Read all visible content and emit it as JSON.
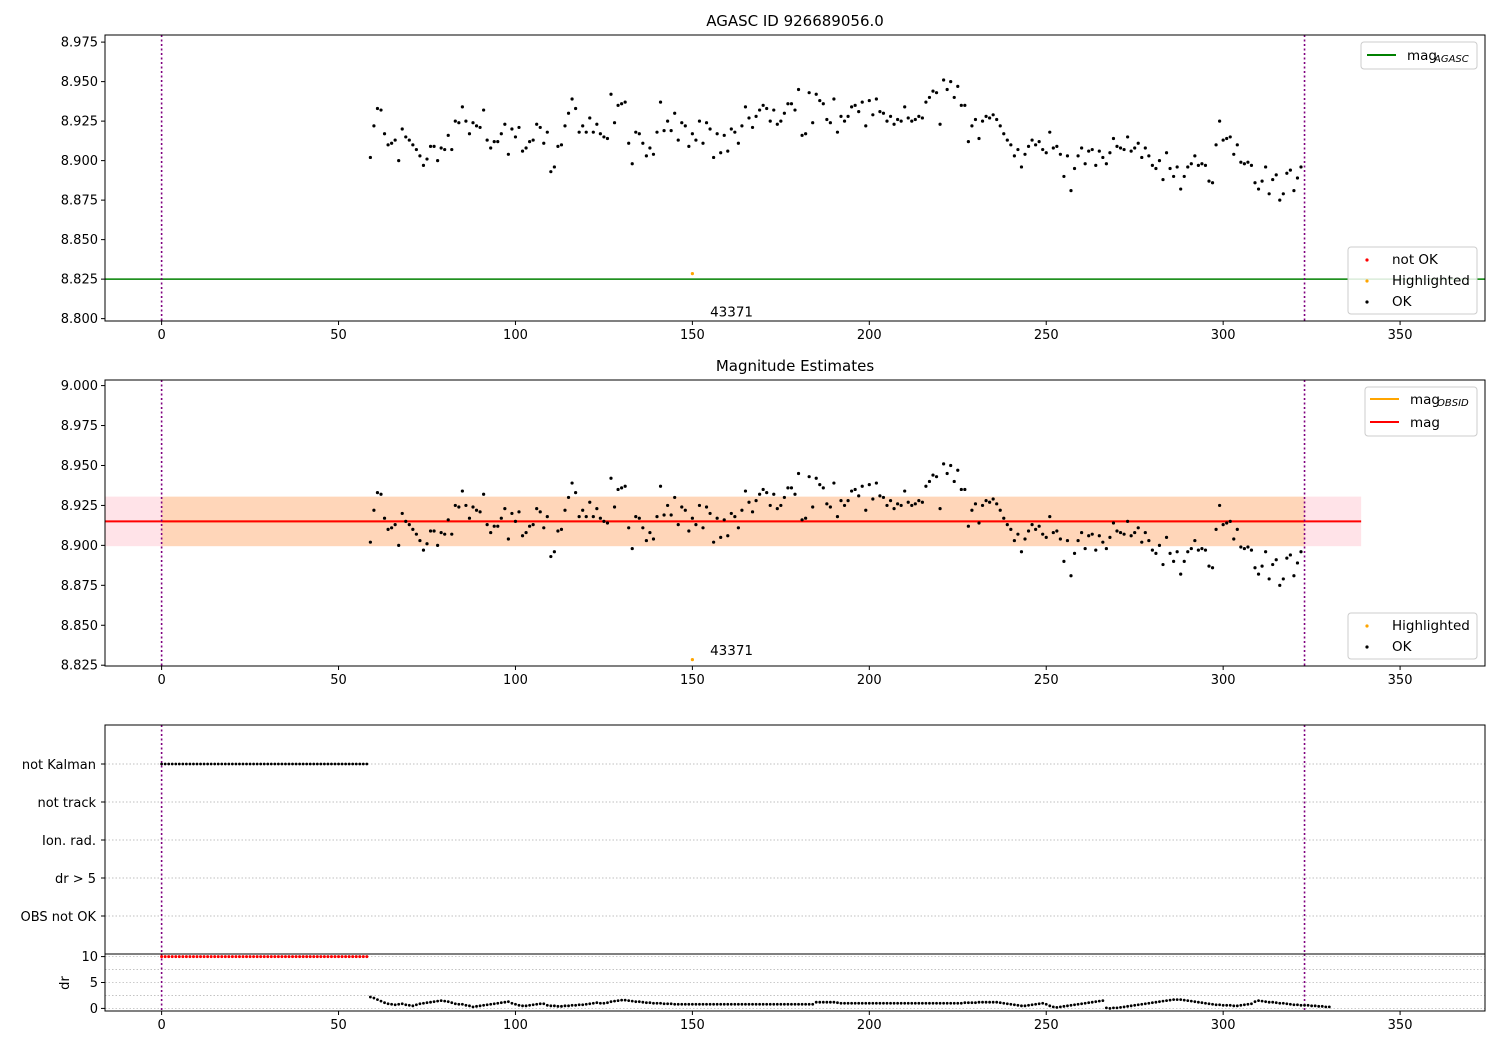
{
  "figure": {
    "background": "#ffffff"
  },
  "chart_data": [
    {
      "type": "scatter",
      "title": "AGASC ID 926689056.0",
      "xlim": [
        -16,
        374
      ],
      "ylim": [
        8.7985,
        8.9795
      ],
      "xticks": [
        0,
        50,
        100,
        150,
        200,
        250,
        300,
        350
      ],
      "yticks": [
        8.8,
        8.825,
        8.85,
        8.875,
        8.9,
        8.925,
        8.95,
        8.975
      ],
      "ytick_labels": [
        "8.800",
        "8.825",
        "8.850",
        "8.875",
        "8.900",
        "8.925",
        "8.950",
        "8.975"
      ],
      "vlines": [
        0,
        323
      ],
      "vline_color": "#7f007f",
      "hline": {
        "name": "mag",
        "subscript": "AGASC",
        "y": 8.825,
        "color": "#008000"
      },
      "legend_top": {
        "position": "upper-right",
        "entries": [
          {
            "name": "mag",
            "subscript": "AGASC",
            "color": "#008000",
            "kind": "line"
          }
        ]
      },
      "legend_bottom": {
        "position": "lower-right",
        "entries": [
          {
            "name": "not OK",
            "color": "#ff0000",
            "kind": "dot"
          },
          {
            "name": "Highlighted",
            "color": "#ffa500",
            "kind": "dot"
          },
          {
            "name": "OK",
            "color": "#000000",
            "kind": "dot"
          }
        ]
      },
      "highlighted": {
        "x": 150,
        "y": 8.8285,
        "color": "#ffa500"
      },
      "annotation": {
        "text": "43371",
        "x": 155,
        "y": 8.8045
      },
      "series_ref": "ok_mag"
    },
    {
      "type": "scatter",
      "title": "Magnitude Estimates",
      "xlim": [
        -16,
        374
      ],
      "ylim": [
        8.8245,
        9.0035
      ],
      "xticks": [
        0,
        50,
        100,
        150,
        200,
        250,
        300,
        350
      ],
      "yticks": [
        8.825,
        8.85,
        8.875,
        8.9,
        8.925,
        8.95,
        8.975,
        9.0
      ],
      "ytick_labels": [
        "8.825",
        "8.850",
        "8.875",
        "8.900",
        "8.925",
        "8.950",
        "8.975",
        "9.000"
      ],
      "vlines": [
        0,
        323
      ],
      "vline_color": "#7f007f",
      "bands": [
        {
          "x0": -16,
          "x1": 339,
          "y0": 8.8995,
          "y1": 8.9305,
          "color": "#ffc0cb",
          "opacity": 0.45
        },
        {
          "x0": 0,
          "x1": 323,
          "y0": 8.8995,
          "y1": 8.9305,
          "color": "#ffa500",
          "opacity": 0.2
        }
      ],
      "hlines": [
        {
          "name": "mag",
          "subscript": "OBSID",
          "y": 8.915,
          "x0": 0,
          "x1": 323,
          "color": "#ffa500"
        },
        {
          "name": "mag",
          "subscript": "",
          "y": 8.915,
          "x0": -16,
          "x1": 339,
          "color": "#ff0000"
        }
      ],
      "legend_top": {
        "position": "upper-right",
        "entries": [
          {
            "name": "mag",
            "subscript": "OBSID",
            "color": "#ffa500",
            "kind": "line"
          },
          {
            "name": "mag",
            "subscript": "",
            "color": "#ff0000",
            "kind": "line"
          }
        ]
      },
      "legend_bottom": {
        "position": "lower-right",
        "entries": [
          {
            "name": "Highlighted",
            "color": "#ffa500",
            "kind": "dot"
          },
          {
            "name": "OK",
            "color": "#000000",
            "kind": "dot"
          }
        ]
      },
      "highlighted": {
        "x": 150,
        "y": 8.8285,
        "color": "#ffa500"
      },
      "annotation": {
        "text": "43371",
        "x": 155,
        "y": 8.8295
      },
      "series_ref": "ok_mag"
    },
    {
      "type": "scatter",
      "title": "",
      "xlim": [
        -16,
        374
      ],
      "categories": [
        "not Kalman",
        "not track",
        "Ion. rad.",
        "dr > 5",
        "OBS not OK"
      ],
      "vlines": [
        0,
        323
      ],
      "vline_color": "#7f007f",
      "flags": {
        "category": "not Kalman",
        "x_start": 0,
        "x_end": 58,
        "color": "#000000"
      }
    },
    {
      "type": "scatter",
      "title": "",
      "ylabel": "dr",
      "xlim": [
        -16,
        374
      ],
      "ylim": [
        -0.5,
        10.5
      ],
      "xticks": [
        0,
        50,
        100,
        150,
        200,
        250,
        300,
        350
      ],
      "yticks": [
        0,
        5,
        10
      ],
      "ytick_labels": [
        "0",
        "5",
        "10"
      ],
      "vlines": [
        0,
        323
      ],
      "vline_color": "#7f007f",
      "not_ok": {
        "x_start": 0,
        "x_end": 58,
        "y": 10,
        "color": "#ff0000"
      },
      "ok_x_start": 59,
      "ok_x_end": 323,
      "ok_dr": [
        2.2,
        2.0,
        1.7,
        1.4,
        1.1,
        0.9,
        0.8,
        0.7,
        0.8,
        0.9,
        0.7,
        0.6,
        0.5,
        0.7,
        0.9,
        1.0,
        1.1,
        1.2,
        1.3,
        1.4,
        1.5,
        1.4,
        1.3,
        1.1,
        0.9,
        0.8,
        0.8,
        0.6,
        0.5,
        0.3,
        0.4,
        0.5,
        0.6,
        0.7,
        0.8,
        0.9,
        1.0,
        1.1,
        1.2,
        1.3,
        1.0,
        0.8,
        0.6,
        0.5,
        0.5,
        0.6,
        0.7,
        0.8,
        0.9,
        0.9,
        0.6,
        0.5,
        0.5,
        0.4,
        0.4,
        0.5,
        0.5,
        0.6,
        0.6,
        0.7,
        0.7,
        0.8,
        0.9,
        1.0,
        1.1,
        1.0,
        1.0,
        1.1,
        1.3,
        1.4,
        1.5,
        1.6,
        1.6,
        1.5,
        1.4,
        1.3,
        1.3,
        1.2,
        1.1,
        1.1,
        1.0,
        1.0,
        1.0,
        0.9,
        0.9,
        0.9,
        0.8,
        0.8,
        0.8,
        0.8,
        0.8,
        0.8,
        0.8,
        0.8,
        0.8,
        0.8,
        0.8,
        0.8,
        0.8,
        0.8,
        0.8,
        0.8,
        0.8,
        0.8,
        0.8,
        0.8,
        0.8,
        0.8,
        0.8,
        0.8,
        0.8,
        0.8,
        0.8,
        0.8,
        0.8,
        0.8,
        0.8,
        0.8,
        0.8,
        0.8,
        0.8,
        0.8,
        0.8,
        0.8,
        0.8,
        0.8,
        1.2,
        1.2,
        1.2,
        1.2,
        1.2,
        1.2,
        1.1,
        1.0,
        1.0,
        1.0,
        1.0,
        1.0,
        1.0,
        1.0,
        1.0,
        1.0,
        1.0,
        1.0,
        1.0,
        1.0,
        1.0,
        1.0,
        1.0,
        1.0,
        1.0,
        1.0,
        1.0,
        1.0,
        1.0,
        1.0,
        1.0,
        1.0,
        1.0,
        1.0,
        1.0,
        1.0,
        1.0,
        1.0,
        1.0,
        1.0,
        1.0,
        1.0,
        1.1,
        1.1,
        1.1,
        1.1,
        1.2,
        1.2,
        1.2,
        1.2,
        1.2,
        1.2,
        1.1,
        1.0,
        0.9,
        0.8,
        0.7,
        0.6,
        0.5,
        0.5,
        0.6,
        0.7,
        0.8,
        0.9,
        1.0,
        0.8,
        0.5,
        0.3,
        0.2,
        0.3,
        0.4,
        0.5,
        0.6,
        0.7,
        0.8,
        0.9,
        1.0,
        1.1,
        1.2,
        1.3,
        1.4,
        1.5,
        0.1,
        0.0,
        0.1,
        0.1,
        0.2,
        0.3,
        0.4,
        0.5,
        0.6,
        0.7,
        0.8,
        0.9,
        1.0,
        1.1,
        1.2,
        1.3,
        1.4,
        1.5,
        1.6,
        1.7,
        1.7,
        1.7,
        1.6,
        1.5,
        1.4,
        1.3,
        1.2,
        1.1,
        1.0,
        0.9,
        0.8,
        0.7,
        0.7,
        0.6,
        0.6,
        0.6,
        0.5,
        0.5,
        0.6,
        0.7,
        0.8,
        0.9,
        1.3,
        1.5,
        1.4,
        1.3,
        1.2,
        1.2,
        1.1,
        1.0,
        1.0,
        0.9,
        0.8,
        0.7,
        0.7,
        0.6,
        0.6,
        0.6,
        0.5,
        0.5,
        0.4,
        0.4,
        0.3,
        0.3
      ]
    }
  ],
  "ok_mag": {
    "x_start": 59,
    "x_end": 323,
    "y": [
      8.902,
      8.922,
      8.933,
      8.932,
      8.917,
      8.91,
      8.911,
      8.913,
      8.9,
      8.92,
      8.915,
      8.913,
      8.91,
      8.907,
      8.903,
      8.897,
      8.901,
      8.909,
      8.909,
      8.9,
      8.908,
      8.907,
      8.916,
      8.907,
      8.925,
      8.924,
      8.934,
      8.925,
      8.917,
      8.924,
      8.922,
      8.921,
      8.932,
      8.913,
      8.908,
      8.912,
      8.912,
      8.917,
      8.923,
      8.904,
      8.92,
      8.915,
      8.921,
      8.906,
      8.908,
      8.912,
      8.913,
      8.923,
      8.921,
      8.911,
      8.918,
      8.893,
      8.896,
      8.909,
      8.91,
      8.922,
      8.93,
      8.939,
      8.933,
      8.918,
      8.922,
      8.918,
      8.927,
      8.918,
      8.923,
      8.917,
      8.915,
      8.914,
      8.942,
      8.924,
      8.935,
      8.936,
      8.937,
      8.911,
      8.898,
      8.918,
      8.917,
      8.911,
      8.903,
      8.908,
      8.904,
      8.918,
      8.937,
      8.919,
      8.925,
      8.919,
      8.93,
      8.913,
      8.924,
      8.922,
      8.909,
      8.917,
      8.913,
      8.925,
      8.911,
      8.924,
      8.92,
      8.902,
      8.917,
      8.905,
      8.916,
      8.906,
      8.92,
      8.918,
      8.911,
      8.922,
      8.934,
      8.927,
      8.921,
      8.928,
      8.932,
      8.935,
      8.933,
      8.925,
      8.932,
      8.923,
      8.925,
      8.93,
      8.936,
      8.936,
      8.932,
      8.945,
      8.916,
      8.917,
      8.943,
      8.924,
      8.942,
      8.938,
      8.936,
      8.926,
      8.924,
      8.939,
      8.918,
      8.928,
      8.925,
      8.928,
      8.934,
      8.935,
      8.931,
      8.937,
      8.922,
      8.938,
      8.929,
      8.939,
      8.931,
      8.93,
      8.925,
      8.928,
      8.923,
      8.926,
      8.925,
      8.934,
      8.927,
      8.925,
      8.926,
      8.928,
      8.927,
      8.937,
      8.94,
      8.944,
      8.943,
      8.923,
      8.951,
      8.945,
      8.95,
      8.94,
      8.947,
      8.935,
      8.935,
      8.912,
      8.922,
      8.926,
      8.914,
      8.925,
      8.928,
      8.927,
      8.929,
      8.926,
      8.922,
      8.917,
      8.913,
      8.91,
      8.903,
      8.907,
      8.896,
      8.904,
      8.909,
      8.913,
      8.91,
      8.912,
      8.907,
      8.905,
      8.918,
      8.908,
      8.909,
      8.904,
      8.89,
      8.903,
      8.881,
      8.895,
      8.903,
      8.908,
      8.898,
      8.906,
      8.907,
      8.897,
      8.906,
      8.902,
      8.898,
      8.905,
      8.914,
      8.909,
      8.908,
      8.907,
      8.915,
      8.906,
      8.908,
      8.911,
      8.902,
      8.908,
      8.903,
      8.897,
      8.895,
      8.9,
      8.888,
      8.905,
      8.895,
      8.89,
      8.896,
      8.882,
      8.89,
      8.896,
      8.898,
      8.903,
      8.897,
      8.898,
      8.897,
      8.887,
      8.886,
      8.91,
      8.925,
      8.913,
      8.914,
      8.915,
      8.904,
      8.91,
      8.899,
      8.898,
      8.899,
      8.897,
      8.886,
      8.882,
      8.887,
      8.896,
      8.879,
      8.888,
      8.891,
      8.875,
      8.879,
      8.892,
      8.894,
      8.881,
      8.889,
      8.896
    ]
  }
}
